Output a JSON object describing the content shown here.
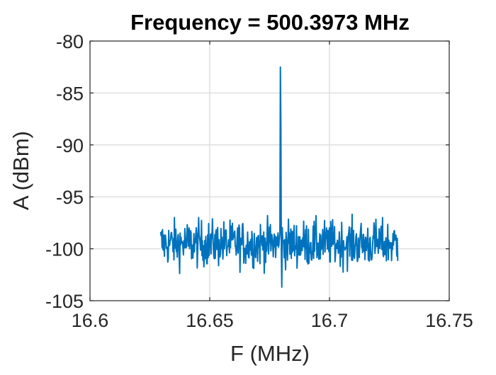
{
  "chart_data": {
    "type": "line",
    "title": "Frequency = 500.3973 MHz",
    "xlabel": "F (MHz)",
    "ylabel": "A (dBm)",
    "xlim": [
      16.6,
      16.75
    ],
    "ylim": [
      -105,
      -80
    ],
    "x_ticks": [
      16.6,
      16.65,
      16.7,
      16.75
    ],
    "x_tick_labels": [
      "16.6",
      "16.65",
      "16.7",
      "16.75"
    ],
    "y_ticks": [
      -105,
      -100,
      -95,
      -90,
      -85,
      -80
    ],
    "y_tick_labels": [
      "-105",
      "-100",
      "-95",
      "-90",
      "-85",
      "-80"
    ],
    "grid": true,
    "series": [
      {
        "color": "#0072bd",
        "x_start": 16.6295,
        "x_end": 16.7285,
        "num_points": 500,
        "noise_floor": -99.5,
        "noise_min": -103.7,
        "noise_max": -96.0,
        "peak": {
          "x": 16.6795,
          "y": -82.5
        }
      }
    ]
  }
}
